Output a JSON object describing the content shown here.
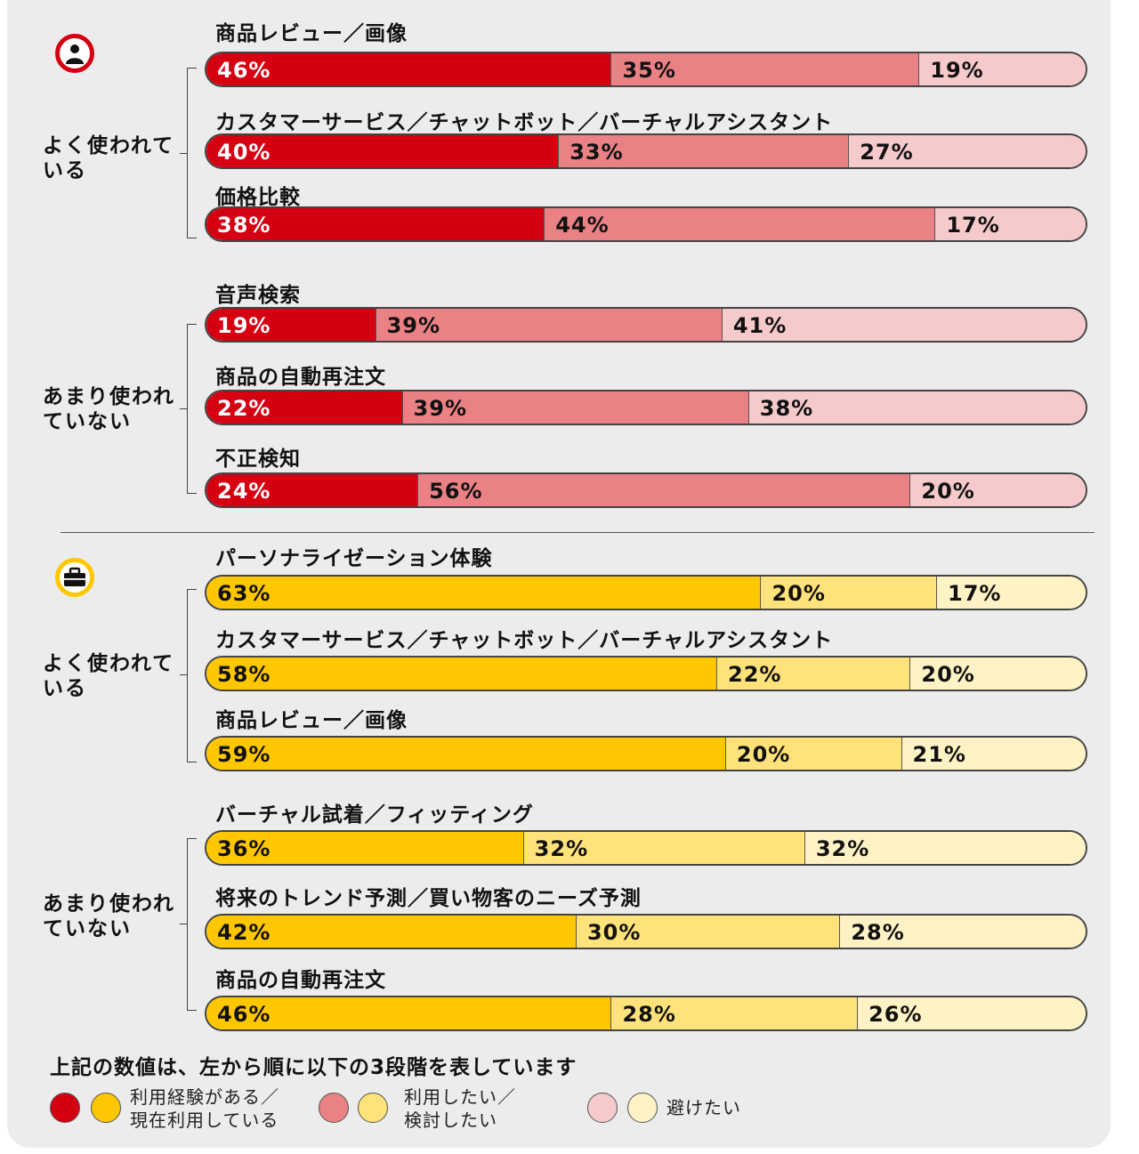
{
  "colors": {
    "consumer": [
      "#d40012",
      "#ea8184",
      "#f6c9cb"
    ],
    "business": [
      "#ffc700",
      "#ffe27a",
      "#fff2c4"
    ],
    "consumer_text": [
      "#ffffff",
      "#111111",
      "#111111"
    ],
    "business_text": [
      "#111111",
      "#111111",
      "#111111"
    ]
  },
  "icons": {
    "consumer": "person-icon",
    "business": "briefcase-icon"
  },
  "legend": {
    "title": "上記の数値は、左から順に以下の3段階を表しています",
    "items": [
      {
        "line1": "利用経験がある／",
        "line2": "現在利用している"
      },
      {
        "line1": "利用したい／",
        "line2": "検討したい"
      },
      {
        "line1": "避けたい",
        "line2": ""
      }
    ]
  },
  "chart_data": [
    {
      "type": "bar",
      "stacked": true,
      "orientation": "horizontal",
      "segment_names": [
        "利用経験がある／現在利用している",
        "利用したい／検討したい",
        "避けたい"
      ],
      "groups": [
        {
          "label": "よく使われている",
          "rows": [
            {
              "label": "商品レビュー／画像",
              "values": [
                46,
                35,
                19
              ]
            },
            {
              "label": "カスタマーサービス／チャットボット／バーチャルアシスタント",
              "values": [
                40,
                33,
                27
              ]
            },
            {
              "label": "価格比較",
              "values": [
                38,
                44,
                17
              ]
            }
          ]
        },
        {
          "label": "あまり使われていない",
          "rows": [
            {
              "label": "音声検索",
              "values": [
                19,
                39,
                41
              ]
            },
            {
              "label": "商品の自動再注文",
              "values": [
                22,
                39,
                38
              ]
            },
            {
              "label": "不正検知",
              "values": [
                24,
                56,
                20
              ]
            }
          ]
        }
      ]
    },
    {
      "type": "bar",
      "stacked": true,
      "orientation": "horizontal",
      "segment_names": [
        "利用経験がある／現在利用している",
        "利用したい／検討したい",
        "避けたい"
      ],
      "groups": [
        {
          "label": "よく使われている",
          "rows": [
            {
              "label": "パーソナライゼーション体験",
              "values": [
                63,
                20,
                17
              ]
            },
            {
              "label": "カスタマーサービス／チャットボット／バーチャルアシスタント",
              "values": [
                58,
                22,
                20
              ]
            },
            {
              "label": "商品レビュー／画像",
              "values": [
                59,
                20,
                21
              ]
            }
          ]
        },
        {
          "label": "あまり使われていない",
          "rows": [
            {
              "label": "バーチャル試着／フィッティング",
              "values": [
                36,
                32,
                32
              ]
            },
            {
              "label": "将来のトレンド予測／買い物客のニーズ予測",
              "values": [
                42,
                30,
                28
              ]
            },
            {
              "label": "商品の自動再注文",
              "values": [
                46,
                28,
                26
              ]
            }
          ]
        }
      ]
    }
  ]
}
